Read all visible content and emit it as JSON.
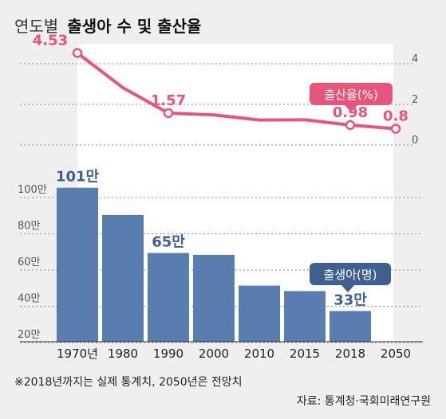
{
  "title": {
    "light": "연도별",
    "bold": "출생아 수 및 출산율"
  },
  "chart_data": [
    {
      "type": "line",
      "name": "출산율(%)",
      "x": [
        "1970년",
        "1980",
        "1990",
        "2000",
        "2010",
        "2015",
        "2018",
        "2050"
      ],
      "values": [
        4.53,
        2.82,
        1.57,
        1.48,
        1.23,
        1.24,
        0.98,
        0.8
      ],
      "point_labels": [
        {
          "index": 0,
          "text": "4.53"
        },
        {
          "index": 2,
          "text": "1.57"
        },
        {
          "index": 6,
          "text": "0.98"
        },
        {
          "index": 7,
          "text": "0.8"
        }
      ],
      "marker_indices": [
        0,
        2,
        6,
        7
      ],
      "ylim": [
        0,
        4
      ],
      "yticks": [
        "0",
        "2",
        "4"
      ],
      "legend": "출산율(%)",
      "color": "#e8557c",
      "grid": true
    },
    {
      "type": "bar",
      "name": "출생아(명)",
      "categories": [
        "1970년",
        "1980",
        "1990",
        "2000",
        "2010",
        "2015",
        "2018",
        "2050"
      ],
      "values": [
        101,
        86,
        65,
        64,
        47,
        44,
        33,
        null
      ],
      "value_labels": [
        {
          "index": 0,
          "text": "101만"
        },
        {
          "index": 2,
          "text": "65만"
        },
        {
          "index": 6,
          "text": "33만"
        }
      ],
      "ylim": [
        20,
        100
      ],
      "yticks": [
        "20만",
        "40만",
        "60만",
        "80만",
        "100만"
      ],
      "legend": "출생아(명)",
      "color": "#5a7daf",
      "grid": true
    }
  ],
  "footnote": "※2018년까지는 실제 통계치, 2050년은 전망치",
  "source": "자료: 통계청·국회미래연구원",
  "colors": {
    "highlight": "#ffffff",
    "background": "#efefef",
    "grid": "#8a8a8a"
  }
}
